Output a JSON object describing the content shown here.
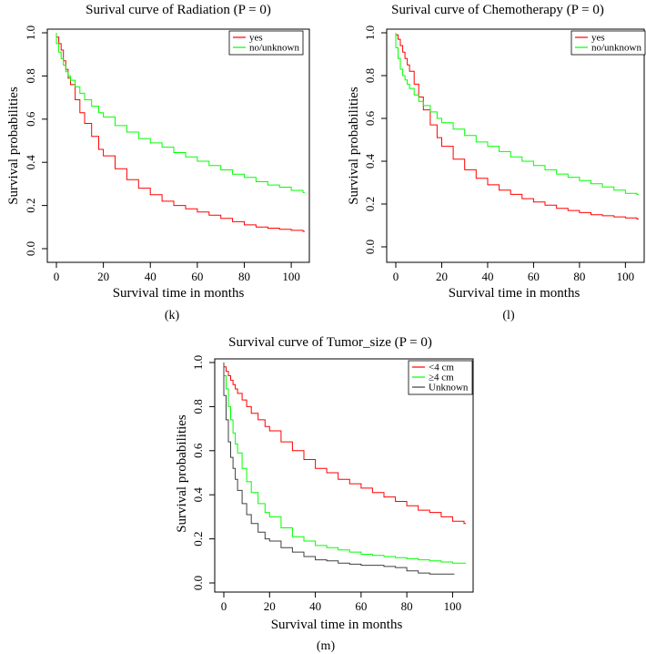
{
  "chart_data": [
    {
      "id": "radiation",
      "type": "line",
      "title": "Surival curve of Radiation (P = 0)",
      "xlabel": "Survival time in months",
      "ylabel": "Survival probabilities",
      "caption": "(k)",
      "xlim": [
        0,
        107
      ],
      "ylim": [
        0,
        1
      ],
      "xticks": [
        "0",
        "20",
        "40",
        "60",
        "80",
        "100"
      ],
      "yticks": [
        "0.0",
        "0.2",
        "0.4",
        "0.6",
        "0.8",
        "1.0"
      ],
      "grid": false,
      "legend_position": "top-right",
      "series": [
        {
          "name": "yes",
          "color": "#ff0000",
          "x": [
            0,
            1,
            2,
            3,
            4,
            5,
            6,
            8,
            10,
            12,
            15,
            18,
            20,
            25,
            30,
            35,
            40,
            45,
            50,
            55,
            60,
            65,
            70,
            75,
            80,
            85,
            90,
            95,
            100,
            105
          ],
          "y": [
            0.98,
            0.95,
            0.92,
            0.87,
            0.83,
            0.79,
            0.76,
            0.69,
            0.63,
            0.58,
            0.52,
            0.46,
            0.43,
            0.37,
            0.32,
            0.28,
            0.25,
            0.22,
            0.2,
            0.185,
            0.17,
            0.155,
            0.14,
            0.125,
            0.11,
            0.1,
            0.095,
            0.09,
            0.085,
            0.08
          ]
        },
        {
          "name": "no/unknown",
          "color": "#00ff00",
          "x": [
            0,
            1,
            2,
            3,
            4,
            5,
            6,
            8,
            10,
            12,
            15,
            18,
            20,
            25,
            30,
            35,
            40,
            45,
            50,
            55,
            60,
            65,
            70,
            75,
            80,
            85,
            90,
            95,
            100,
            105
          ],
          "y": [
            0.95,
            0.91,
            0.88,
            0.85,
            0.82,
            0.8,
            0.78,
            0.75,
            0.72,
            0.69,
            0.66,
            0.63,
            0.61,
            0.57,
            0.54,
            0.51,
            0.49,
            0.47,
            0.445,
            0.425,
            0.405,
            0.385,
            0.365,
            0.345,
            0.33,
            0.31,
            0.295,
            0.285,
            0.27,
            0.26
          ]
        }
      ]
    },
    {
      "id": "chemotherapy",
      "type": "line",
      "title": "Surival curve of Chemotherapy (P = 0)",
      "xlabel": "Survival time in months",
      "ylabel": "Survival probabilities",
      "caption": "(l)",
      "xlim": [
        0,
        107
      ],
      "ylim": [
        0,
        1
      ],
      "xticks": [
        "0",
        "20",
        "40",
        "60",
        "80",
        "100"
      ],
      "yticks": [
        "0.0",
        "0.2",
        "0.4",
        "0.6",
        "0.8",
        "1.0"
      ],
      "grid": false,
      "legend_position": "top-right",
      "series": [
        {
          "name": "yes",
          "color": "#ff0000",
          "x": [
            0,
            1,
            2,
            3,
            4,
            5,
            6,
            8,
            10,
            12,
            15,
            18,
            20,
            25,
            30,
            35,
            40,
            45,
            50,
            55,
            60,
            65,
            70,
            75,
            80,
            85,
            90,
            95,
            100,
            105
          ],
          "y": [
            0.99,
            0.97,
            0.94,
            0.91,
            0.88,
            0.85,
            0.82,
            0.76,
            0.7,
            0.64,
            0.57,
            0.51,
            0.47,
            0.41,
            0.36,
            0.32,
            0.29,
            0.265,
            0.245,
            0.225,
            0.21,
            0.195,
            0.18,
            0.17,
            0.16,
            0.15,
            0.145,
            0.14,
            0.135,
            0.13
          ]
        },
        {
          "name": "no/unknown",
          "color": "#00ff00",
          "x": [
            0,
            1,
            2,
            3,
            4,
            5,
            6,
            8,
            10,
            12,
            15,
            18,
            20,
            25,
            30,
            35,
            40,
            45,
            50,
            55,
            60,
            65,
            70,
            75,
            80,
            85,
            90,
            95,
            100,
            105
          ],
          "y": [
            0.93,
            0.88,
            0.83,
            0.8,
            0.78,
            0.76,
            0.74,
            0.71,
            0.68,
            0.66,
            0.63,
            0.6,
            0.58,
            0.55,
            0.52,
            0.49,
            0.47,
            0.445,
            0.42,
            0.4,
            0.38,
            0.36,
            0.34,
            0.325,
            0.31,
            0.295,
            0.28,
            0.265,
            0.25,
            0.245
          ]
        }
      ]
    },
    {
      "id": "tumor-size",
      "type": "line",
      "title": "Survival curve of Tumor_size (P = 0)",
      "xlabel": "Survival time in months",
      "ylabel": "Survival probabilities",
      "caption": "(m)",
      "xlim": [
        0,
        107
      ],
      "ylim": [
        0,
        1
      ],
      "xticks": [
        "0",
        "20",
        "40",
        "60",
        "80",
        "100"
      ],
      "yticks": [
        "0.0",
        "0.2",
        "0.4",
        "0.6",
        "0.8",
        "1.0"
      ],
      "grid": false,
      "legend_position": "top-right",
      "series": [
        {
          "name": "<4 cm",
          "color": "#ff0000",
          "x": [
            0,
            1,
            2,
            3,
            4,
            5,
            6,
            8,
            10,
            12,
            15,
            18,
            20,
            25,
            30,
            35,
            40,
            45,
            50,
            55,
            60,
            65,
            70,
            75,
            80,
            85,
            90,
            95,
            100,
            105
          ],
          "y": [
            0.98,
            0.96,
            0.94,
            0.92,
            0.9,
            0.88,
            0.86,
            0.83,
            0.8,
            0.77,
            0.74,
            0.71,
            0.69,
            0.64,
            0.6,
            0.56,
            0.52,
            0.5,
            0.47,
            0.45,
            0.43,
            0.41,
            0.39,
            0.37,
            0.35,
            0.33,
            0.32,
            0.3,
            0.28,
            0.27
          ]
        },
        {
          "name": "≥4 cm",
          "color": "#00ff00",
          "x": [
            0,
            1,
            2,
            3,
            4,
            5,
            6,
            8,
            10,
            12,
            15,
            18,
            20,
            25,
            30,
            35,
            40,
            45,
            50,
            55,
            60,
            65,
            70,
            75,
            80,
            85,
            90,
            95,
            100,
            105
          ],
          "y": [
            0.94,
            0.88,
            0.8,
            0.74,
            0.68,
            0.63,
            0.59,
            0.52,
            0.46,
            0.41,
            0.36,
            0.32,
            0.3,
            0.25,
            0.21,
            0.19,
            0.17,
            0.16,
            0.15,
            0.14,
            0.13,
            0.125,
            0.12,
            0.115,
            0.11,
            0.105,
            0.1,
            0.095,
            0.09,
            0.09
          ]
        },
        {
          "name": "Unknown",
          "color": "#404040",
          "x": [
            0,
            1,
            2,
            3,
            4,
            5,
            6,
            8,
            10,
            12,
            15,
            18,
            20,
            25,
            30,
            35,
            40,
            45,
            50,
            55,
            60,
            65,
            70,
            75,
            80,
            85,
            90,
            95,
            100
          ],
          "y": [
            0.85,
            0.74,
            0.64,
            0.57,
            0.52,
            0.47,
            0.42,
            0.36,
            0.31,
            0.27,
            0.23,
            0.2,
            0.19,
            0.16,
            0.14,
            0.12,
            0.105,
            0.1,
            0.09,
            0.085,
            0.08,
            0.08,
            0.075,
            0.07,
            0.055,
            0.045,
            0.04,
            0.04,
            0.04
          ]
        }
      ]
    }
  ]
}
